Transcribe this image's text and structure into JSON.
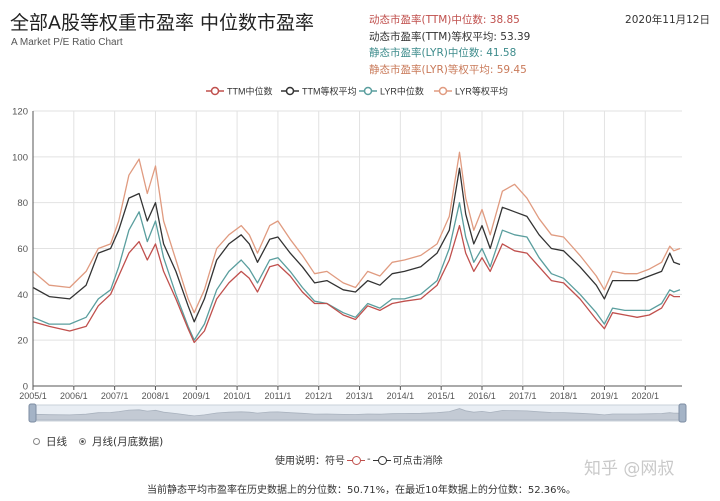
{
  "header": {
    "title": "全部A股等权重市盈率 中位数市盈率",
    "subtitle": "A Market P/E Ratio Chart",
    "date": "2020年11月12日",
    "stats": [
      {
        "text": "动态市盈率(TTM)中位数: 38.85",
        "color": "#c0504d"
      },
      {
        "text": "动态市盈率(TTM)等权平均: 53.39",
        "color": "#333333"
      },
      {
        "text": "静态市盈率(LYR)中位数: 41.58",
        "color": "#3e8c8c"
      },
      {
        "text": "静态市盈率(LYR)等权平均: 59.45",
        "color": "#c97a5a"
      }
    ]
  },
  "controls": {
    "radio_daily": "日线",
    "radio_monthly": "月线(月底数据)",
    "usage_prefix": "使用说明：符号",
    "usage_suffix": "可点击消除"
  },
  "footer": {
    "text": "当前静态平均市盈率在历史数据上的分位数：50.71%，在最近10年数据上的分位数：52.36%。"
  },
  "watermark": "知乎 @网叔",
  "chart_data": {
    "type": "line",
    "ylim": [
      0,
      120
    ],
    "yticks": [
      0,
      20,
      40,
      60,
      80,
      100,
      120
    ],
    "x_range": [
      2005.0,
      2020.9
    ],
    "xticks": [
      "2005/1",
      "2006/1",
      "2007/1",
      "2008/1",
      "2009/1",
      "2010/1",
      "2011/1",
      "2012/1",
      "2013/1",
      "2014/1",
      "2015/1",
      "2016/1",
      "2017/1",
      "2018/1",
      "2019/1",
      "2020/1"
    ],
    "grid": true,
    "legend_position": "top-center",
    "series": [
      {
        "name": "TTM中位数",
        "color": "#c0504d",
        "points": [
          [
            2005.0,
            28
          ],
          [
            2005.4,
            26
          ],
          [
            2005.9,
            24
          ],
          [
            2006.3,
            26
          ],
          [
            2006.6,
            35
          ],
          [
            2006.9,
            40
          ],
          [
            2007.1,
            48
          ],
          [
            2007.35,
            58
          ],
          [
            2007.6,
            63
          ],
          [
            2007.8,
            55
          ],
          [
            2008.0,
            62
          ],
          [
            2008.2,
            50
          ],
          [
            2008.5,
            38
          ],
          [
            2008.8,
            25
          ],
          [
            2008.95,
            19
          ],
          [
            2009.2,
            24
          ],
          [
            2009.5,
            38
          ],
          [
            2009.8,
            45
          ],
          [
            2010.1,
            50
          ],
          [
            2010.3,
            47
          ],
          [
            2010.5,
            41
          ],
          [
            2010.8,
            52
          ],
          [
            2011.0,
            53
          ],
          [
            2011.3,
            48
          ],
          [
            2011.6,
            41
          ],
          [
            2011.9,
            36
          ],
          [
            2012.2,
            36
          ],
          [
            2012.6,
            31
          ],
          [
            2012.9,
            29
          ],
          [
            2013.2,
            35
          ],
          [
            2013.5,
            33
          ],
          [
            2013.8,
            36
          ],
          [
            2014.1,
            37
          ],
          [
            2014.5,
            38
          ],
          [
            2014.9,
            44
          ],
          [
            2015.2,
            55
          ],
          [
            2015.45,
            70
          ],
          [
            2015.6,
            58
          ],
          [
            2015.8,
            50
          ],
          [
            2016.0,
            56
          ],
          [
            2016.2,
            50
          ],
          [
            2016.5,
            62
          ],
          [
            2016.8,
            59
          ],
          [
            2017.1,
            58
          ],
          [
            2017.4,
            52
          ],
          [
            2017.7,
            46
          ],
          [
            2018.0,
            45
          ],
          [
            2018.4,
            38
          ],
          [
            2018.8,
            29
          ],
          [
            2019.0,
            25
          ],
          [
            2019.2,
            32
          ],
          [
            2019.5,
            31
          ],
          [
            2019.8,
            30
          ],
          [
            2020.1,
            31
          ],
          [
            2020.4,
            34
          ],
          [
            2020.6,
            40
          ],
          [
            2020.7,
            39
          ],
          [
            2020.85,
            39
          ]
        ]
      },
      {
        "name": "TTM等权平均",
        "color": "#333333",
        "points": [
          [
            2005.0,
            43
          ],
          [
            2005.4,
            39
          ],
          [
            2005.9,
            38
          ],
          [
            2006.3,
            44
          ],
          [
            2006.6,
            58
          ],
          [
            2006.9,
            60
          ],
          [
            2007.1,
            68
          ],
          [
            2007.35,
            82
          ],
          [
            2007.6,
            84
          ],
          [
            2007.8,
            72
          ],
          [
            2008.0,
            80
          ],
          [
            2008.2,
            62
          ],
          [
            2008.5,
            50
          ],
          [
            2008.8,
            35
          ],
          [
            2008.95,
            28
          ],
          [
            2009.2,
            38
          ],
          [
            2009.5,
            55
          ],
          [
            2009.8,
            62
          ],
          [
            2010.1,
            66
          ],
          [
            2010.3,
            62
          ],
          [
            2010.5,
            54
          ],
          [
            2010.8,
            64
          ],
          [
            2011.0,
            65
          ],
          [
            2011.3,
            58
          ],
          [
            2011.6,
            52
          ],
          [
            2011.9,
            45
          ],
          [
            2012.2,
            46
          ],
          [
            2012.6,
            42
          ],
          [
            2012.9,
            41
          ],
          [
            2013.2,
            46
          ],
          [
            2013.5,
            44
          ],
          [
            2013.8,
            49
          ],
          [
            2014.1,
            50
          ],
          [
            2014.5,
            52
          ],
          [
            2014.9,
            58
          ],
          [
            2015.2,
            68
          ],
          [
            2015.45,
            95
          ],
          [
            2015.6,
            75
          ],
          [
            2015.8,
            62
          ],
          [
            2016.0,
            70
          ],
          [
            2016.2,
            60
          ],
          [
            2016.5,
            78
          ],
          [
            2016.8,
            76
          ],
          [
            2017.1,
            74
          ],
          [
            2017.4,
            66
          ],
          [
            2017.7,
            60
          ],
          [
            2018.0,
            59
          ],
          [
            2018.4,
            52
          ],
          [
            2018.8,
            44
          ],
          [
            2019.0,
            38
          ],
          [
            2019.2,
            46
          ],
          [
            2019.5,
            46
          ],
          [
            2019.8,
            46
          ],
          [
            2020.1,
            48
          ],
          [
            2020.4,
            50
          ],
          [
            2020.6,
            58
          ],
          [
            2020.7,
            54
          ],
          [
            2020.85,
            53
          ]
        ]
      },
      {
        "name": "LYR中位数",
        "color": "#5a9e9e",
        "points": [
          [
            2005.0,
            30
          ],
          [
            2005.4,
            27
          ],
          [
            2005.9,
            27
          ],
          [
            2006.3,
            30
          ],
          [
            2006.6,
            38
          ],
          [
            2006.9,
            42
          ],
          [
            2007.1,
            52
          ],
          [
            2007.35,
            68
          ],
          [
            2007.6,
            76
          ],
          [
            2007.8,
            63
          ],
          [
            2008.0,
            72
          ],
          [
            2008.2,
            56
          ],
          [
            2008.5,
            40
          ],
          [
            2008.8,
            26
          ],
          [
            2008.95,
            20
          ],
          [
            2009.2,
            27
          ],
          [
            2009.5,
            42
          ],
          [
            2009.8,
            50
          ],
          [
            2010.1,
            55
          ],
          [
            2010.3,
            51
          ],
          [
            2010.5,
            45
          ],
          [
            2010.8,
            55
          ],
          [
            2011.0,
            56
          ],
          [
            2011.3,
            50
          ],
          [
            2011.6,
            43
          ],
          [
            2011.9,
            37
          ],
          [
            2012.2,
            36
          ],
          [
            2012.6,
            32
          ],
          [
            2012.9,
            30
          ],
          [
            2013.2,
            36
          ],
          [
            2013.5,
            34
          ],
          [
            2013.8,
            38
          ],
          [
            2014.1,
            38
          ],
          [
            2014.5,
            40
          ],
          [
            2014.9,
            46
          ],
          [
            2015.2,
            60
          ],
          [
            2015.45,
            80
          ],
          [
            2015.6,
            65
          ],
          [
            2015.8,
            54
          ],
          [
            2016.0,
            60
          ],
          [
            2016.2,
            52
          ],
          [
            2016.5,
            68
          ],
          [
            2016.8,
            66
          ],
          [
            2017.1,
            65
          ],
          [
            2017.4,
            56
          ],
          [
            2017.7,
            49
          ],
          [
            2018.0,
            47
          ],
          [
            2018.4,
            40
          ],
          [
            2018.8,
            32
          ],
          [
            2019.0,
            27
          ],
          [
            2019.2,
            34
          ],
          [
            2019.5,
            33
          ],
          [
            2019.8,
            33
          ],
          [
            2020.1,
            33
          ],
          [
            2020.4,
            36
          ],
          [
            2020.6,
            42
          ],
          [
            2020.7,
            41
          ],
          [
            2020.85,
            42
          ]
        ]
      },
      {
        "name": "LYR等权平均",
        "color": "#e09b80",
        "points": [
          [
            2005.0,
            50
          ],
          [
            2005.4,
            44
          ],
          [
            2005.9,
            43
          ],
          [
            2006.3,
            50
          ],
          [
            2006.6,
            60
          ],
          [
            2006.9,
            62
          ],
          [
            2007.1,
            72
          ],
          [
            2007.35,
            92
          ],
          [
            2007.6,
            99
          ],
          [
            2007.8,
            84
          ],
          [
            2008.0,
            96
          ],
          [
            2008.2,
            72
          ],
          [
            2008.5,
            55
          ],
          [
            2008.8,
            38
          ],
          [
            2008.95,
            32
          ],
          [
            2009.2,
            42
          ],
          [
            2009.5,
            60
          ],
          [
            2009.8,
            66
          ],
          [
            2010.1,
            70
          ],
          [
            2010.3,
            66
          ],
          [
            2010.5,
            58
          ],
          [
            2010.8,
            70
          ],
          [
            2011.0,
            72
          ],
          [
            2011.3,
            64
          ],
          [
            2011.6,
            57
          ],
          [
            2011.9,
            49
          ],
          [
            2012.2,
            50
          ],
          [
            2012.6,
            45
          ],
          [
            2012.9,
            43
          ],
          [
            2013.2,
            50
          ],
          [
            2013.5,
            48
          ],
          [
            2013.8,
            54
          ],
          [
            2014.1,
            55
          ],
          [
            2014.5,
            57
          ],
          [
            2014.9,
            62
          ],
          [
            2015.2,
            74
          ],
          [
            2015.45,
            102
          ],
          [
            2015.6,
            82
          ],
          [
            2015.8,
            68
          ],
          [
            2016.0,
            77
          ],
          [
            2016.2,
            66
          ],
          [
            2016.5,
            85
          ],
          [
            2016.8,
            88
          ],
          [
            2017.1,
            82
          ],
          [
            2017.4,
            73
          ],
          [
            2017.7,
            66
          ],
          [
            2018.0,
            65
          ],
          [
            2018.4,
            57
          ],
          [
            2018.8,
            48
          ],
          [
            2019.0,
            42
          ],
          [
            2019.2,
            50
          ],
          [
            2019.5,
            49
          ],
          [
            2019.8,
            49
          ],
          [
            2020.1,
            51
          ],
          [
            2020.4,
            54
          ],
          [
            2020.6,
            61
          ],
          [
            2020.7,
            59
          ],
          [
            2020.85,
            60
          ]
        ]
      }
    ]
  }
}
